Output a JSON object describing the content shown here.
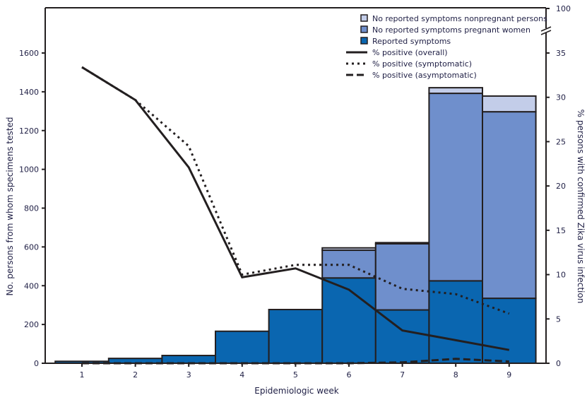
{
  "chart_data": {
    "type": "bar+line",
    "xlabel": "Epidemiologic week",
    "ylabel": "No. persons from whom specimens tested",
    "ylabel_right": "% persons with confirmed Zika virus infection",
    "categories": [
      "1",
      "2",
      "3",
      "4",
      "5",
      "6",
      "7",
      "8",
      "9"
    ],
    "ylim": [
      0,
      1600
    ],
    "yticks": [
      0,
      200,
      400,
      600,
      800,
      1000,
      1200,
      1400,
      1600
    ],
    "ylim_right": [
      0,
      35
    ],
    "yticks_right": [
      "0",
      "5",
      "10",
      "15",
      "20",
      "25",
      "30",
      "35",
      "100"
    ],
    "right_axis_break": true,
    "grid": false,
    "legend_position": "top-right",
    "bar_series": [
      {
        "name": "Reported symptoms",
        "color": "#0a66b0",
        "values": [
          10,
          25,
          40,
          165,
          277,
          440,
          275,
          425,
          335
        ]
      },
      {
        "name": "No reported symptoms pregnant women",
        "color": "#6f8fcc",
        "values": [
          0,
          0,
          0,
          0,
          0,
          143,
          341,
          967,
          962
        ]
      },
      {
        "name": "No reported symptoms nonpregnant persons",
        "color": "#c3cde9",
        "values": [
          0,
          0,
          0,
          0,
          0,
          12,
          6,
          29,
          81
        ]
      }
    ],
    "line_series": [
      {
        "name": "% positive (overall)",
        "style": "solid",
        "values": [
          33.4,
          29.7,
          22.1,
          9.7,
          10.7,
          8.3,
          3.7,
          2.6,
          1.5
        ]
      },
      {
        "name": "% positive (symptomatic)",
        "style": "dotted",
        "values": [
          33.4,
          29.7,
          24.5,
          10.0,
          11.1,
          11.1,
          8.4,
          7.8,
          5.6
        ]
      },
      {
        "name": "% positive (asymptomatic)",
        "style": "dashed",
        "values": [
          0,
          0,
          0,
          0,
          0,
          0,
          0.1,
          0.5,
          0.2
        ]
      }
    ]
  }
}
